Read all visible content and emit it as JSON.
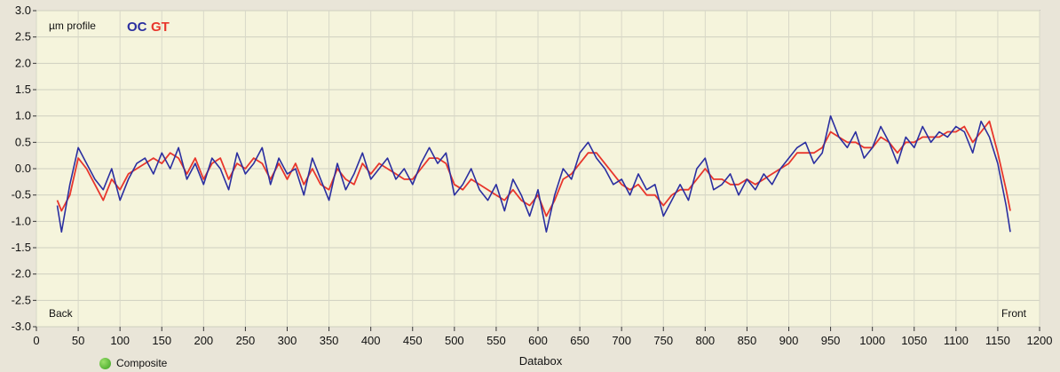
{
  "chart_data": {
    "type": "line",
    "title": "µm profile",
    "xlabel": "Databox",
    "ylabel": "",
    "xlim": [
      0,
      1200
    ],
    "ylim": [
      -3.0,
      3.0
    ],
    "x_ticks": [
      0,
      50,
      100,
      150,
      200,
      250,
      300,
      350,
      400,
      450,
      500,
      550,
      600,
      650,
      700,
      750,
      800,
      850,
      900,
      950,
      1000,
      1050,
      1100,
      1150,
      1200
    ],
    "y_ticks": [
      "3.0",
      "2.5",
      "2.0",
      "1.5",
      "1.0",
      "0.5",
      "0.0",
      "-0.5",
      "-1.0",
      "-1.5",
      "-2.0",
      "-2.5",
      "-3.0"
    ],
    "grid": true,
    "legend_position": "top-left",
    "annotations": {
      "left": "Back",
      "right": "Front"
    },
    "series": [
      {
        "name": "OC",
        "color": "#2b2fa0",
        "x": [
          25,
          30,
          40,
          50,
          60,
          70,
          80,
          90,
          100,
          110,
          120,
          130,
          140,
          150,
          160,
          170,
          180,
          190,
          200,
          210,
          220,
          230,
          240,
          250,
          260,
          270,
          280,
          290,
          300,
          310,
          320,
          330,
          340,
          350,
          360,
          370,
          380,
          390,
          400,
          410,
          420,
          430,
          440,
          450,
          460,
          470,
          480,
          490,
          500,
          510,
          520,
          530,
          540,
          550,
          560,
          570,
          580,
          590,
          600,
          610,
          620,
          630,
          640,
          650,
          660,
          670,
          680,
          690,
          700,
          710,
          720,
          730,
          740,
          750,
          760,
          770,
          780,
          790,
          800,
          810,
          820,
          830,
          840,
          850,
          860,
          870,
          880,
          890,
          900,
          910,
          920,
          930,
          940,
          950,
          960,
          970,
          980,
          990,
          1000,
          1010,
          1020,
          1030,
          1040,
          1050,
          1060,
          1070,
          1080,
          1090,
          1100,
          1110,
          1120,
          1130,
          1140,
          1150,
          1160,
          1165
        ],
        "values": [
          -0.7,
          -1.2,
          -0.3,
          0.4,
          0.1,
          -0.2,
          -0.4,
          0.0,
          -0.6,
          -0.2,
          0.1,
          0.2,
          -0.1,
          0.3,
          0.0,
          0.4,
          -0.2,
          0.1,
          -0.3,
          0.2,
          0.0,
          -0.4,
          0.3,
          -0.1,
          0.1,
          0.4,
          -0.3,
          0.2,
          -0.1,
          0.0,
          -0.5,
          0.2,
          -0.2,
          -0.6,
          0.1,
          -0.4,
          -0.1,
          0.3,
          -0.2,
          0.0,
          0.2,
          -0.2,
          0.0,
          -0.3,
          0.1,
          0.4,
          0.1,
          0.3,
          -0.5,
          -0.3,
          0.0,
          -0.4,
          -0.6,
          -0.3,
          -0.8,
          -0.2,
          -0.5,
          -0.9,
          -0.4,
          -1.2,
          -0.5,
          0.0,
          -0.2,
          0.3,
          0.5,
          0.2,
          0.0,
          -0.3,
          -0.2,
          -0.5,
          -0.1,
          -0.4,
          -0.3,
          -0.9,
          -0.6,
          -0.3,
          -0.6,
          0.0,
          0.2,
          -0.4,
          -0.3,
          -0.1,
          -0.5,
          -0.2,
          -0.4,
          -0.1,
          -0.3,
          0.0,
          0.2,
          0.4,
          0.5,
          0.1,
          0.3,
          1.0,
          0.6,
          0.4,
          0.7,
          0.2,
          0.4,
          0.8,
          0.5,
          0.1,
          0.6,
          0.4,
          0.8,
          0.5,
          0.7,
          0.6,
          0.8,
          0.7,
          0.3,
          0.9,
          0.6,
          0.1,
          -0.7,
          -1.2
        ]
      },
      {
        "name": "GT",
        "color": "#e8362c",
        "x": [
          25,
          30,
          40,
          50,
          60,
          70,
          80,
          90,
          100,
          110,
          120,
          130,
          140,
          150,
          160,
          170,
          180,
          190,
          200,
          210,
          220,
          230,
          240,
          250,
          260,
          270,
          280,
          290,
          300,
          310,
          320,
          330,
          340,
          350,
          360,
          370,
          380,
          390,
          400,
          410,
          420,
          430,
          440,
          450,
          460,
          470,
          480,
          490,
          500,
          510,
          520,
          530,
          540,
          550,
          560,
          570,
          580,
          590,
          600,
          610,
          620,
          630,
          640,
          650,
          660,
          670,
          680,
          690,
          700,
          710,
          720,
          730,
          740,
          750,
          760,
          770,
          780,
          790,
          800,
          810,
          820,
          830,
          840,
          850,
          860,
          870,
          880,
          890,
          900,
          910,
          920,
          930,
          940,
          950,
          960,
          970,
          980,
          990,
          1000,
          1010,
          1020,
          1030,
          1040,
          1050,
          1060,
          1070,
          1080,
          1090,
          1100,
          1110,
          1120,
          1130,
          1140,
          1150,
          1160,
          1165
        ],
        "values": [
          -0.6,
          -0.8,
          -0.5,
          0.2,
          0.0,
          -0.3,
          -0.6,
          -0.2,
          -0.4,
          -0.1,
          0.0,
          0.1,
          0.2,
          0.1,
          0.3,
          0.2,
          -0.1,
          0.2,
          -0.2,
          0.1,
          0.2,
          -0.2,
          0.1,
          0.0,
          0.2,
          0.1,
          -0.2,
          0.1,
          -0.2,
          0.1,
          -0.3,
          0.0,
          -0.3,
          -0.4,
          0.0,
          -0.2,
          -0.3,
          0.1,
          -0.1,
          0.1,
          0.0,
          -0.1,
          -0.2,
          -0.2,
          0.0,
          0.2,
          0.2,
          0.1,
          -0.3,
          -0.4,
          -0.2,
          -0.3,
          -0.4,
          -0.5,
          -0.6,
          -0.4,
          -0.6,
          -0.7,
          -0.5,
          -0.9,
          -0.6,
          -0.2,
          -0.1,
          0.1,
          0.3,
          0.3,
          0.1,
          -0.1,
          -0.3,
          -0.4,
          -0.3,
          -0.5,
          -0.5,
          -0.7,
          -0.5,
          -0.4,
          -0.4,
          -0.2,
          0.0,
          -0.2,
          -0.2,
          -0.3,
          -0.3,
          -0.2,
          -0.3,
          -0.2,
          -0.1,
          0.0,
          0.1,
          0.3,
          0.3,
          0.3,
          0.4,
          0.7,
          0.6,
          0.5,
          0.5,
          0.4,
          0.4,
          0.6,
          0.5,
          0.3,
          0.5,
          0.5,
          0.6,
          0.6,
          0.6,
          0.7,
          0.7,
          0.8,
          0.5,
          0.7,
          0.9,
          0.3,
          -0.4,
          -0.8
        ]
      }
    ]
  },
  "footer": {
    "label": "Composite",
    "dot_color": "#4aad2a"
  }
}
